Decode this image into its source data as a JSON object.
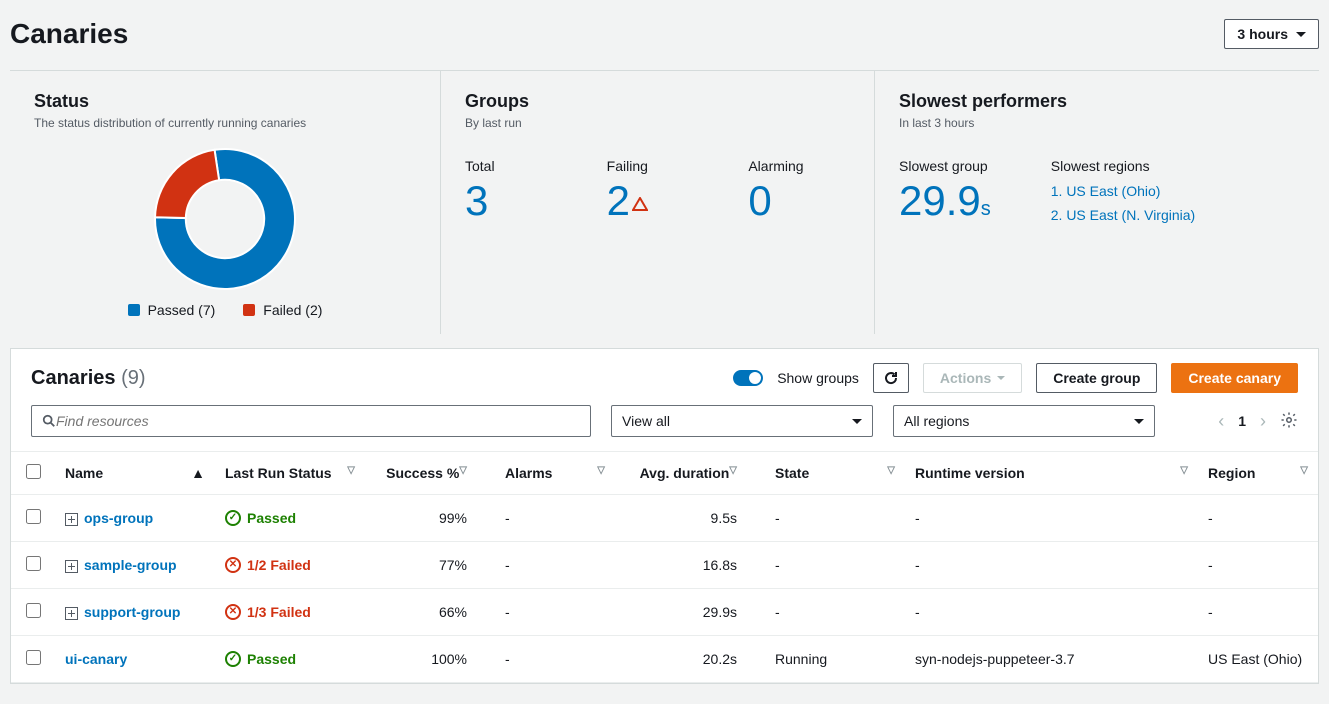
{
  "header": {
    "title": "Canaries",
    "time_label": "3 hours"
  },
  "status": {
    "title": "Status",
    "subtitle": "The status distribution of currently running canaries",
    "donut": {
      "type": "donut",
      "slices": [
        {
          "label": "Passed",
          "value": 7,
          "color": "#0073bb"
        },
        {
          "label": "Failed",
          "value": 2,
          "color": "#d13212"
        }
      ],
      "inner_radius_pct": 56,
      "background_color": "#f2f3f3"
    },
    "legend_passed": "Passed (7)",
    "legend_failed": "Failed (2)"
  },
  "groups": {
    "title": "Groups",
    "subtitle": "By last run",
    "total_label": "Total",
    "total_value": "3",
    "failing_label": "Failing",
    "failing_value": "2",
    "alarming_label": "Alarming",
    "alarming_value": "0"
  },
  "slow": {
    "title": "Slowest performers",
    "subtitle": "In last 3 hours",
    "group_label": "Slowest group",
    "group_value": "29.9",
    "group_unit": "s",
    "regions_label": "Slowest regions",
    "region1": "1. US East (Ohio)",
    "region2": "2. US East (N. Virginia)"
  },
  "table": {
    "title": "Canaries",
    "count": "(9)",
    "show_groups": "Show groups",
    "actions_btn": "Actions",
    "create_group_btn": "Create group",
    "create_canary_btn": "Create canary",
    "search_placeholder": "Find resources",
    "filter1": "View all",
    "filter2": "All regions",
    "page": "1",
    "cols": {
      "name": "Name",
      "last_run": "Last Run Status",
      "success": "Success %",
      "alarms": "Alarms",
      "avg": "Avg. duration",
      "state": "State",
      "runtime": "Runtime version",
      "region": "Region"
    },
    "rows": [
      {
        "expandable": true,
        "name": "ops-group",
        "status_type": "passed",
        "status_text": "Passed",
        "success": "99%",
        "alarms": "-",
        "avg": "9.5s",
        "state": "-",
        "runtime": "-",
        "region": "-"
      },
      {
        "expandable": true,
        "name": "sample-group",
        "status_type": "failed",
        "status_text": "1/2 Failed",
        "success": "77%",
        "alarms": "-",
        "avg": "16.8s",
        "state": "-",
        "runtime": "-",
        "region": "-"
      },
      {
        "expandable": true,
        "name": "support-group",
        "status_type": "failed",
        "status_text": "1/3 Failed",
        "success": "66%",
        "alarms": "-",
        "avg": "29.9s",
        "state": "-",
        "runtime": "-",
        "region": "-"
      },
      {
        "expandable": false,
        "name": "ui-canary",
        "status_type": "passed",
        "status_text": "Passed",
        "success": "100%",
        "alarms": "-",
        "avg": "20.2s",
        "state": "Running",
        "runtime": "syn-nodejs-puppeteer-3.7",
        "region": "US East (Ohio)"
      }
    ]
  },
  "colors": {
    "passed": "#1d8102",
    "failed": "#d13212",
    "link": "#0073bb",
    "primary": "#ec7211"
  }
}
